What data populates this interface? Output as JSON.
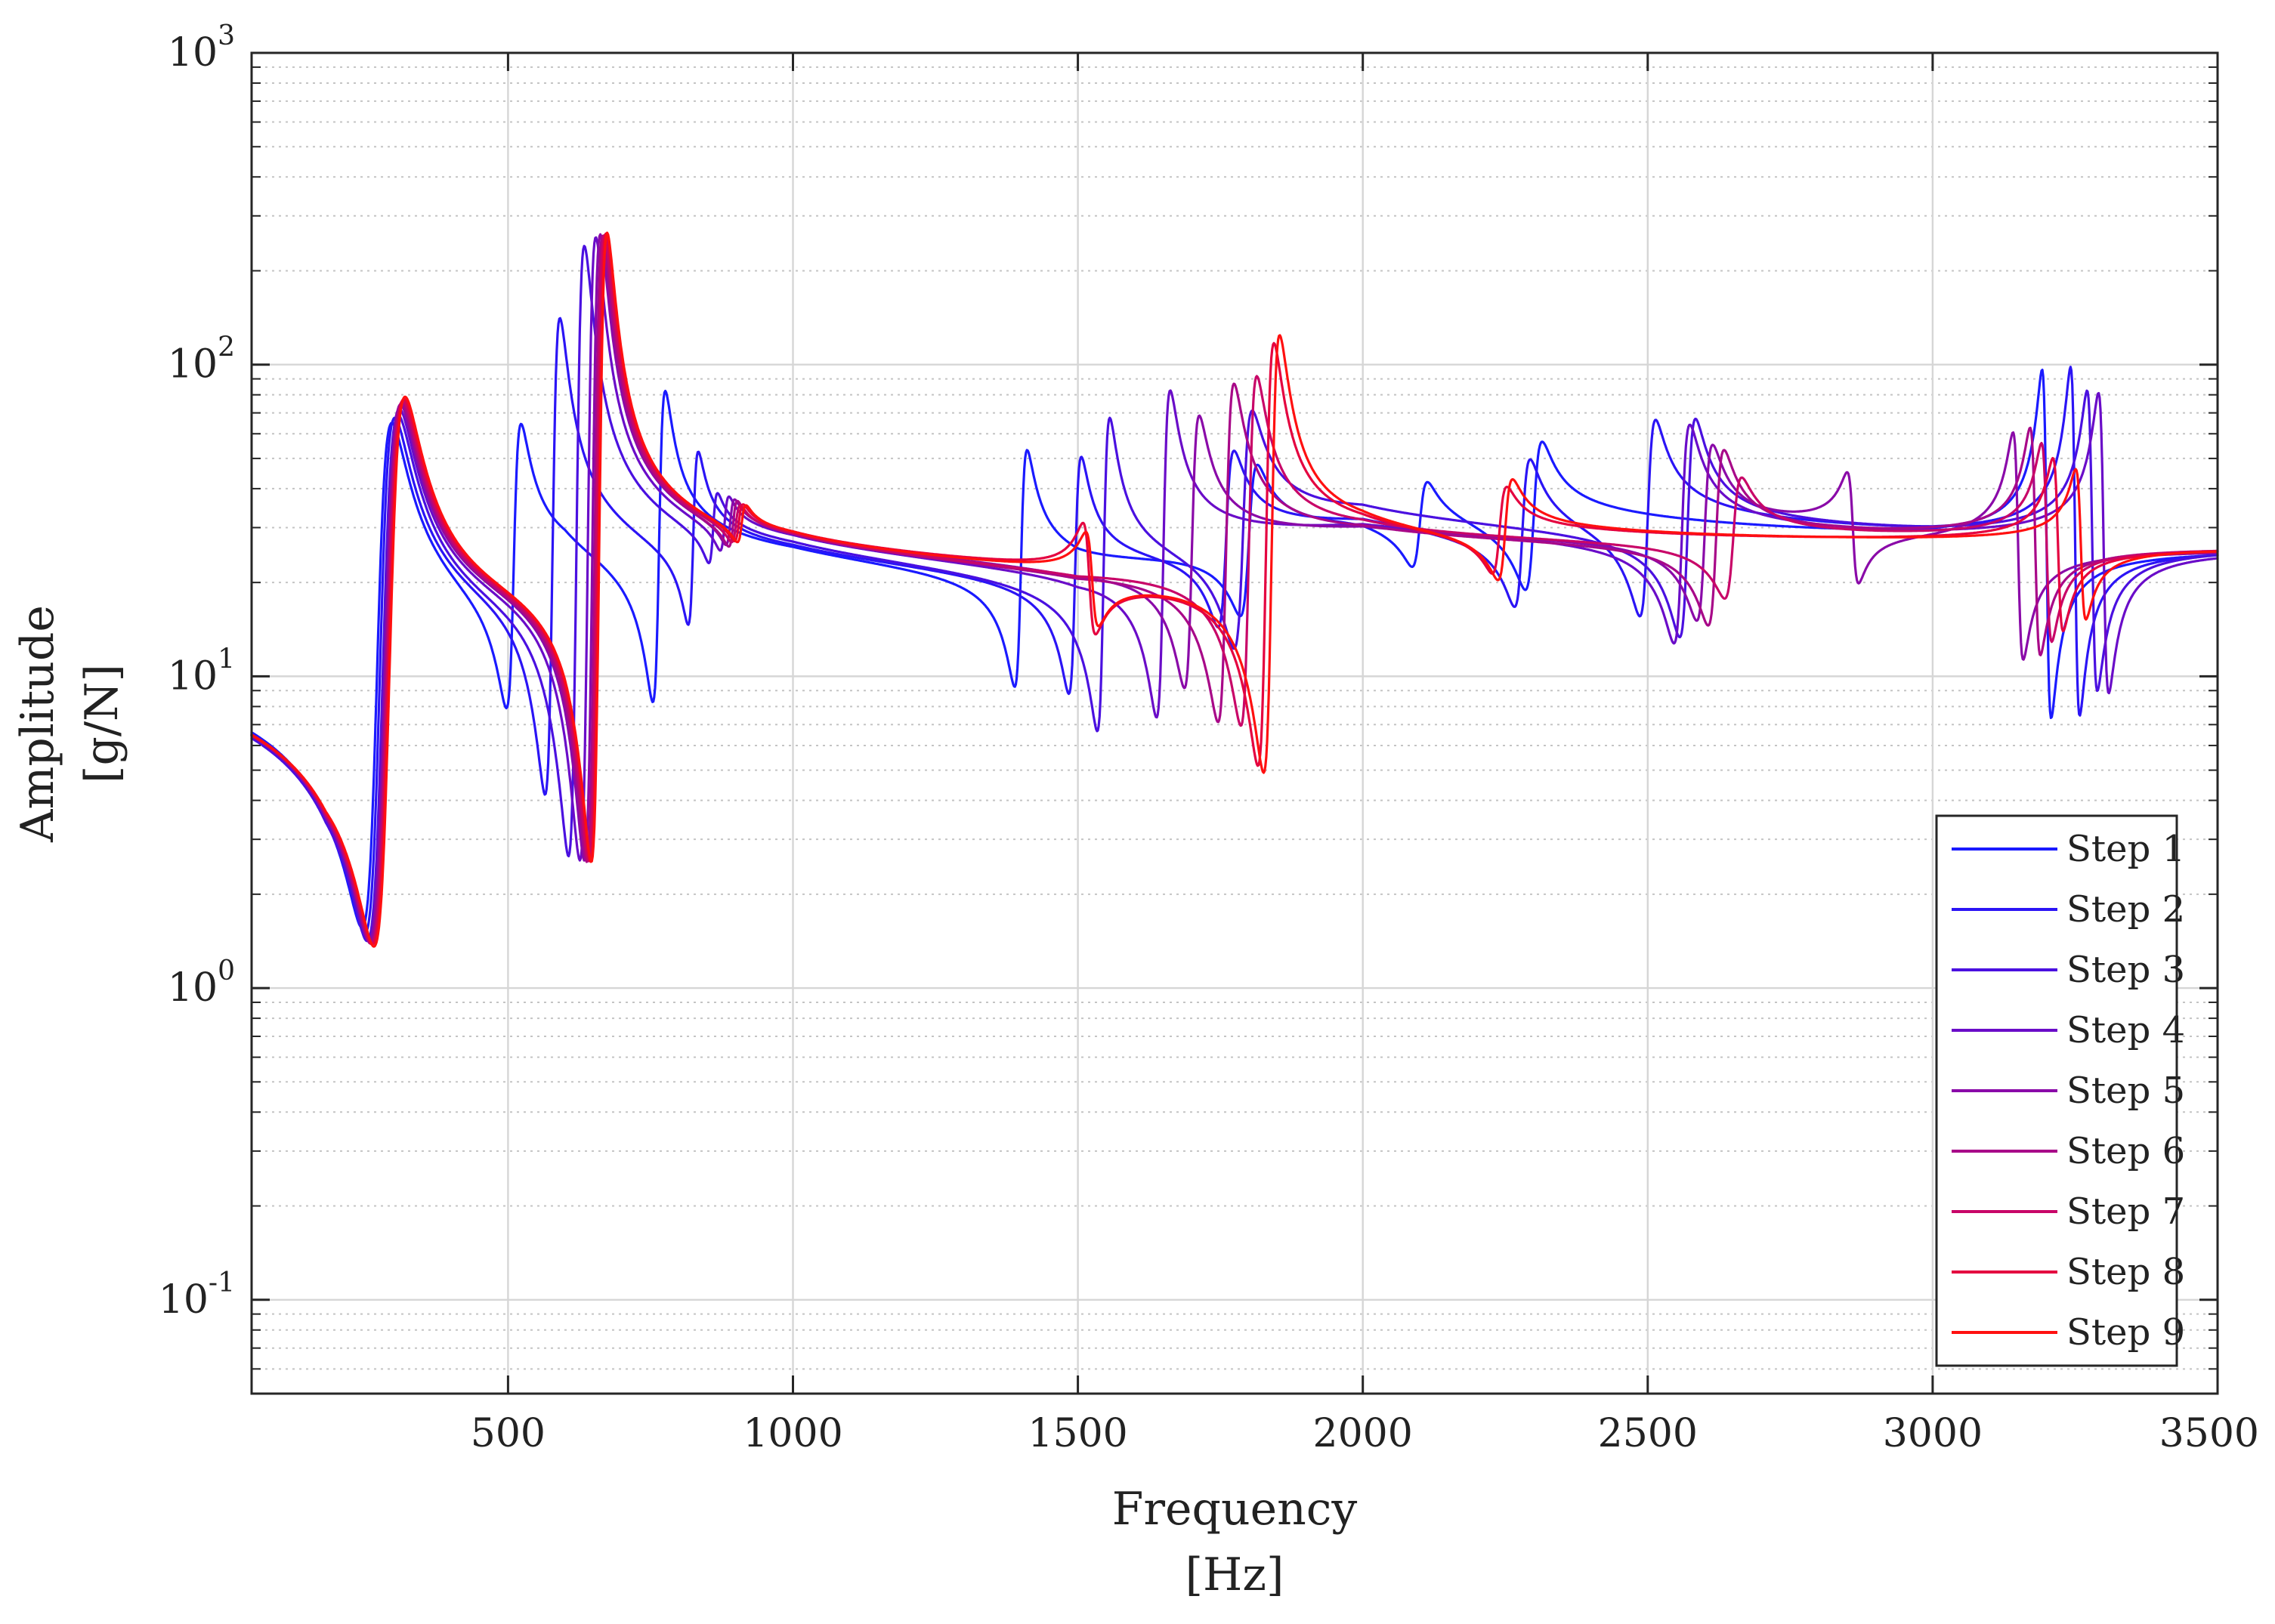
{
  "chart_data": {
    "type": "line",
    "title": "",
    "xlabel": "Frequency",
    "xlabel_unit": "[Hz]",
    "ylabel": "Amplitude",
    "ylabel_unit": "[g/N]",
    "xscale": "linear",
    "yscale": "log",
    "xlim": [
      50,
      3500
    ],
    "ylim": [
      0.05,
      1000
    ],
    "grid": true,
    "legend_position": "bottom-right",
    "x_ticks": [
      {
        "value": 500,
        "label": "500"
      },
      {
        "value": 1000,
        "label": "1000"
      },
      {
        "value": 1500,
        "label": "1500"
      },
      {
        "value": 2000,
        "label": "2000"
      },
      {
        "value": 2500,
        "label": "2500"
      },
      {
        "value": 3000,
        "label": "3000"
      },
      {
        "value": 3500,
        "label": "3500"
      }
    ],
    "y_ticks": [
      {
        "value": 0.1,
        "base": "10",
        "exp": "-1"
      },
      {
        "value": 1,
        "base": "10",
        "exp": "0"
      },
      {
        "value": 10,
        "base": "10",
        "exp": "1"
      },
      {
        "value": 100,
        "base": "10",
        "exp": "2"
      },
      {
        "value": 1000,
        "base": "10",
        "exp": "3"
      }
    ],
    "series": [
      {
        "name": "Step 1",
        "color": "#1a1aff",
        "baseline": [
          [
            50,
            11.5
          ],
          [
            180,
            10.8
          ],
          [
            600,
            20
          ],
          [
            1000,
            21
          ],
          [
            1500,
            20
          ],
          [
            2000,
            28
          ],
          [
            3000,
            24
          ],
          [
            3500,
            24
          ]
        ],
        "modes": [
          [
            270,
            26,
            200
          ],
          [
            510,
            13,
            75
          ],
          [
            765,
            11,
            85
          ],
          [
            1400,
            11,
            60
          ],
          [
            1800,
            15,
            40
          ],
          [
            2100,
            14,
            30
          ],
          [
            2300,
            15,
            40
          ],
          [
            3200,
            8,
            4
          ]
        ]
      },
      {
        "name": "Step 2",
        "color": "#2b14f5",
        "baseline": [
          [
            50,
            11.5
          ],
          [
            180,
            10.8
          ],
          [
            600,
            20
          ],
          [
            1000,
            21
          ],
          [
            1500,
            20
          ],
          [
            2000,
            28
          ],
          [
            3000,
            24
          ],
          [
            3500,
            24
          ]
        ],
        "modes": [
          [
            275,
            26,
            210
          ],
          [
            578,
            13,
            180
          ],
          [
            825,
            9,
            45
          ],
          [
            1495,
            11,
            60
          ],
          [
            1760,
            14,
            45
          ],
          [
            2280,
            14,
            40
          ],
          [
            2500,
            14,
            50
          ],
          [
            3250,
            8,
            4
          ]
        ]
      },
      {
        "name": "Step 3",
        "color": "#4a10e0",
        "baseline": [
          [
            50,
            11.5
          ],
          [
            180,
            10.8
          ],
          [
            600,
            20
          ],
          [
            1000,
            21
          ],
          [
            1500,
            20
          ],
          [
            2000,
            27
          ],
          [
            3000,
            24
          ],
          [
            3500,
            24
          ]
        ],
        "modes": [
          [
            280,
            27,
            220
          ],
          [
            620,
            14,
            340
          ],
          [
            860,
            8,
            28
          ],
          [
            1545,
            11,
            85
          ],
          [
            1790,
            16,
            60
          ],
          [
            2570,
            14,
            55
          ],
          [
            3280,
            9,
            5
          ]
        ]
      },
      {
        "name": "Step 4",
        "color": "#6a0cc8",
        "baseline": [
          [
            50,
            11.5
          ],
          [
            180,
            10.8
          ],
          [
            600,
            20
          ],
          [
            1000,
            21
          ],
          [
            1500,
            20
          ],
          [
            2000,
            26
          ],
          [
            3000,
            24
          ],
          [
            3500,
            24
          ]
        ],
        "modes": [
          [
            282,
            27,
            225
          ],
          [
            640,
            14,
            360
          ],
          [
            880,
            8,
            26
          ],
          [
            1650,
            12,
            90
          ],
          [
            2560,
            14,
            55
          ],
          [
            3300,
            9,
            5
          ]
        ]
      },
      {
        "name": "Step 5",
        "color": "#8a0aa8",
        "baseline": [
          [
            50,
            11.5
          ],
          [
            180,
            10.8
          ],
          [
            600,
            20
          ],
          [
            1000,
            21
          ],
          [
            1500,
            20
          ],
          [
            2000,
            25
          ],
          [
            3000,
            24
          ],
          [
            3500,
            24
          ]
        ],
        "modes": [
          [
            284,
            27,
            230
          ],
          [
            648,
            14,
            365
          ],
          [
            890,
            8,
            25
          ],
          [
            1700,
            13,
            70
          ],
          [
            2600,
            14,
            45
          ],
          [
            2860,
            10,
            12
          ],
          [
            3150,
            9,
            7
          ]
        ]
      },
      {
        "name": "Step 6",
        "color": "#a80888",
        "baseline": [
          [
            50,
            11.5
          ],
          [
            180,
            10.8
          ],
          [
            600,
            20
          ],
          [
            1000,
            21
          ],
          [
            1500,
            20
          ],
          [
            2000,
            24
          ],
          [
            3000,
            24
          ],
          [
            3500,
            24
          ]
        ],
        "modes": [
          [
            286,
            27,
            235
          ],
          [
            652,
            14,
            365
          ],
          [
            895,
            8,
            25
          ],
          [
            1760,
            14,
            95
          ],
          [
            2620,
            14,
            45
          ],
          [
            3180,
            9,
            7
          ]
        ]
      },
      {
        "name": "Step 7",
        "color": "#c80668",
        "baseline": [
          [
            50,
            11.5
          ],
          [
            180,
            10.8
          ],
          [
            600,
            20
          ],
          [
            1000,
            21
          ],
          [
            1500,
            20
          ],
          [
            2000,
            24
          ],
          [
            3000,
            24
          ],
          [
            3500,
            24
          ]
        ],
        "modes": [
          [
            288,
            27,
            238
          ],
          [
            655,
            14,
            365
          ],
          [
            900,
            8,
            24
          ],
          [
            1800,
            14,
            100
          ],
          [
            2650,
            15,
            35
          ],
          [
            3200,
            9,
            8
          ]
        ]
      },
      {
        "name": "Step 8",
        "color": "#e40440",
        "baseline": [
          [
            50,
            11.5
          ],
          [
            180,
            10.8
          ],
          [
            600,
            20
          ],
          [
            1000,
            21
          ],
          [
            1500,
            20
          ],
          [
            2000,
            24
          ],
          [
            3000,
            24
          ],
          [
            3500,
            24
          ]
        ],
        "modes": [
          [
            290,
            27,
            240
          ],
          [
            658,
            14,
            368
          ],
          [
            905,
            8,
            24
          ],
          [
            1520,
            11,
            12
          ],
          [
            1830,
            14,
            140
          ],
          [
            2240,
            13,
            30
          ],
          [
            3220,
            9,
            9
          ]
        ]
      },
      {
        "name": "Step 9",
        "color": "#ff1010",
        "baseline": [
          [
            50,
            11.5
          ],
          [
            180,
            10.8
          ],
          [
            600,
            20
          ],
          [
            1000,
            21
          ],
          [
            1500,
            20
          ],
          [
            2000,
            24
          ],
          [
            3000,
            24
          ],
          [
            3500,
            24
          ]
        ],
        "modes": [
          [
            292,
            27,
            245
          ],
          [
            660,
            14,
            370
          ],
          [
            910,
            8,
            24
          ],
          [
            1525,
            11,
            13
          ],
          [
            1840,
            14,
            150
          ],
          [
            2250,
            13,
            32
          ],
          [
            3260,
            9,
            10
          ]
        ]
      }
    ]
  }
}
